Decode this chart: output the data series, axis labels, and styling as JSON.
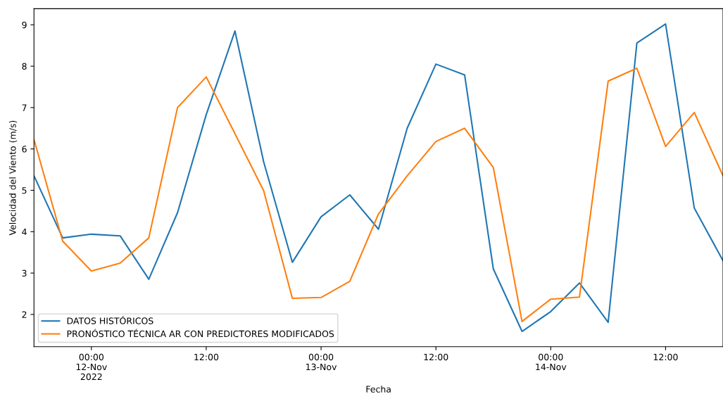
{
  "chart_data": {
    "type": "line",
    "xlabel": "Fecha",
    "ylabel": "Velocidad del Viento (m/s)",
    "x": [
      "2022-11-11T18:00",
      "2022-11-11T21:00",
      "2022-11-12T00:00",
      "2022-11-12T03:00",
      "2022-11-12T06:00",
      "2022-11-12T09:00",
      "2022-11-12T12:00",
      "2022-11-12T15:00",
      "2022-11-12T18:00",
      "2022-11-12T21:00",
      "2022-11-13T00:00",
      "2022-11-13T03:00",
      "2022-11-13T06:00",
      "2022-11-13T09:00",
      "2022-11-13T12:00",
      "2022-11-13T15:00",
      "2022-11-13T18:00",
      "2022-11-13T21:00",
      "2022-11-14T00:00",
      "2022-11-14T03:00",
      "2022-11-14T06:00",
      "2022-11-14T09:00",
      "2022-11-14T12:00",
      "2022-11-14T15:00",
      "2022-11-14T18:00"
    ],
    "series": [
      {
        "name": "DATOS HISTÓRICOS",
        "color": "#1f77b4",
        "values": [
          5.35,
          3.85,
          3.94,
          3.9,
          2.85,
          4.46,
          6.83,
          8.85,
          5.69,
          3.26,
          4.36,
          4.89,
          4.06,
          6.5,
          8.05,
          7.79,
          3.1,
          1.59,
          2.07,
          2.76,
          1.81,
          8.56,
          9.02,
          4.57,
          3.3
        ]
      },
      {
        "name": "PRONÓSTICO TÉCNICA AR CON PREDICTORES MODIFICADOS",
        "color": "#ff7f0e",
        "values": [
          6.23,
          3.77,
          3.05,
          3.24,
          3.85,
          7.0,
          7.74,
          6.37,
          4.99,
          2.39,
          2.41,
          2.8,
          4.43,
          5.35,
          6.18,
          6.5,
          5.55,
          1.83,
          2.37,
          2.42,
          7.64,
          7.95,
          6.06,
          6.88,
          5.35
        ]
      }
    ],
    "xlim": [
      "2022-11-11T18:00",
      "2022-11-14T18:00"
    ],
    "xticks": [
      {
        "value": "2022-11-12T00:00",
        "label": "00:00\n12-Nov\n2022"
      },
      {
        "value": "2022-11-12T12:00",
        "label": "12:00"
      },
      {
        "value": "2022-11-13T00:00",
        "label": "00:00\n13-Nov"
      },
      {
        "value": "2022-11-13T12:00",
        "label": "12:00"
      },
      {
        "value": "2022-11-14T00:00",
        "label": "00:00\n14-Nov"
      },
      {
        "value": "2022-11-14T12:00",
        "label": "12:00"
      }
    ],
    "ylim": [
      1.22,
      9.39
    ],
    "yticks": [
      2,
      3,
      4,
      5,
      6,
      7,
      8,
      9
    ],
    "legend": "lower left",
    "grid": false
  }
}
